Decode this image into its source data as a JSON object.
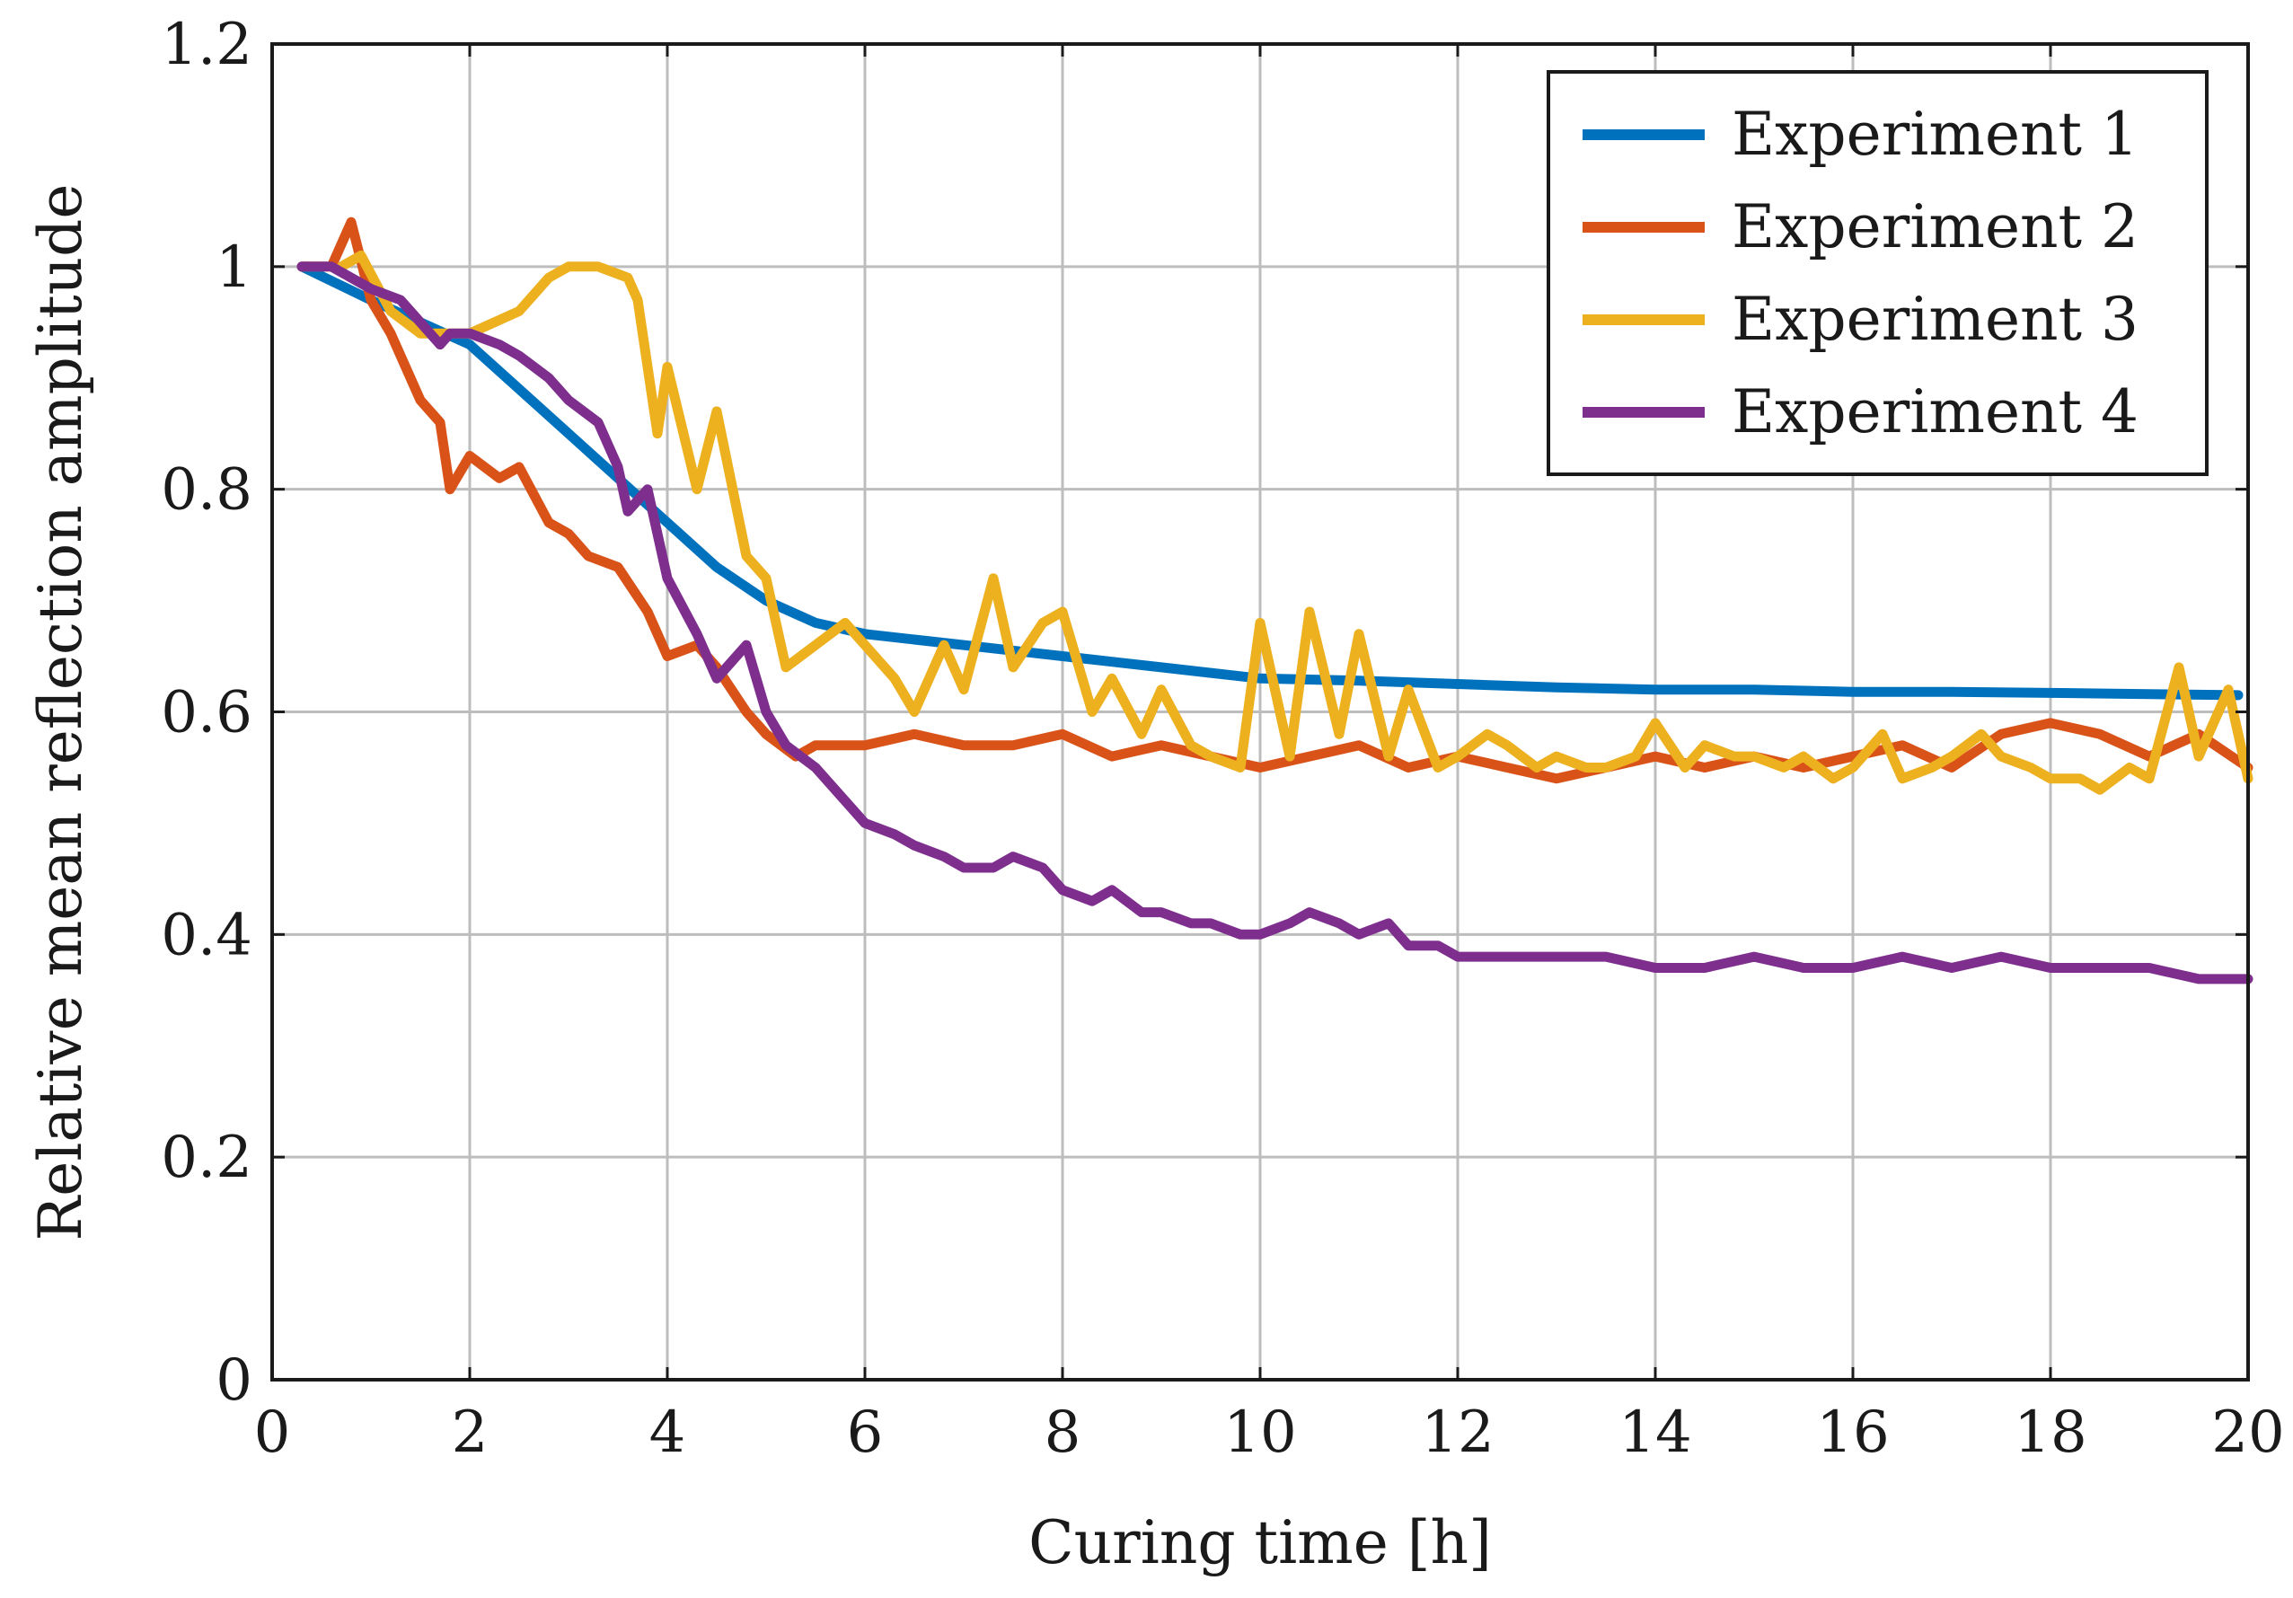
{
  "chart_data": {
    "type": "line",
    "title": "",
    "xlabel": "Curing time [h]",
    "ylabel": "Relative mean reflection amplitude",
    "xlim": [
      0,
      20
    ],
    "ylim": [
      0,
      1.2
    ],
    "grid": true,
    "legend_position": "top-right",
    "xticks": [
      0,
      2,
      4,
      6,
      8,
      10,
      12,
      14,
      16,
      18,
      20
    ],
    "xtick_labels": [
      "0",
      "2",
      "4",
      "6",
      "8",
      "10",
      "12",
      "14",
      "16",
      "18",
      "20"
    ],
    "yticks": [
      0,
      0.2,
      0.4,
      0.6,
      0.8,
      1.0,
      1.2
    ],
    "ytick_labels": [
      "0",
      "0.2",
      "0.4",
      "0.6",
      "0.8",
      "1",
      "1.2"
    ],
    "series": [
      {
        "name": "Experiment 1",
        "color": "#0072BD",
        "x": [
          0.3,
          1.0,
          1.5,
          2.0,
          2.5,
          3.0,
          3.5,
          4.0,
          4.5,
          5.0,
          5.5,
          6.0,
          6.5,
          7.0,
          7.5,
          8.0,
          8.5,
          9.0,
          9.5,
          10.0,
          11.0,
          12.0,
          13.0,
          14.0,
          15.0,
          16.0,
          17.0,
          18.0,
          19.0,
          19.9
        ],
        "y": [
          1.0,
          0.97,
          0.95,
          0.93,
          0.89,
          0.85,
          0.81,
          0.77,
          0.73,
          0.7,
          0.68,
          0.67,
          0.665,
          0.66,
          0.655,
          0.65,
          0.645,
          0.64,
          0.635,
          0.63,
          0.628,
          0.625,
          0.622,
          0.62,
          0.62,
          0.618,
          0.618,
          0.617,
          0.616,
          0.615
        ]
      },
      {
        "name": "Experiment 2",
        "color": "#D95319",
        "x": [
          0.3,
          0.6,
          0.8,
          1.0,
          1.2,
          1.5,
          1.7,
          1.8,
          2.0,
          2.3,
          2.5,
          2.8,
          3.0,
          3.2,
          3.5,
          3.8,
          4.0,
          4.3,
          4.5,
          4.8,
          5.0,
          5.3,
          5.5,
          6.0,
          6.5,
          7.0,
          7.5,
          8.0,
          8.5,
          9.0,
          9.5,
          10.0,
          10.5,
          11.0,
          11.5,
          12.0,
          12.5,
          13.0,
          13.5,
          14.0,
          14.5,
          15.0,
          15.5,
          16.0,
          16.5,
          17.0,
          17.5,
          18.0,
          18.5,
          19.0,
          19.5,
          20.0
        ],
        "y": [
          1.0,
          1.0,
          1.04,
          0.97,
          0.94,
          0.88,
          0.86,
          0.8,
          0.83,
          0.81,
          0.82,
          0.77,
          0.76,
          0.74,
          0.73,
          0.69,
          0.65,
          0.66,
          0.64,
          0.6,
          0.58,
          0.56,
          0.57,
          0.57,
          0.58,
          0.57,
          0.57,
          0.58,
          0.56,
          0.57,
          0.56,
          0.55,
          0.56,
          0.57,
          0.55,
          0.56,
          0.55,
          0.54,
          0.55,
          0.56,
          0.55,
          0.56,
          0.55,
          0.56,
          0.57,
          0.55,
          0.58,
          0.59,
          0.58,
          0.56,
          0.58,
          0.55
        ]
      },
      {
        "name": "Experiment 3",
        "color": "#EDB120",
        "x": [
          0.7,
          0.9,
          1.2,
          1.5,
          2.0,
          2.5,
          2.8,
          3.0,
          3.3,
          3.6,
          3.7,
          3.9,
          4.0,
          4.3,
          4.5,
          4.8,
          5.0,
          5.2,
          5.5,
          5.8,
          6.0,
          6.3,
          6.5,
          6.8,
          7.0,
          7.3,
          7.5,
          7.8,
          8.0,
          8.3,
          8.5,
          8.8,
          9.0,
          9.3,
          9.5,
          9.8,
          10.0,
          10.3,
          10.5,
          10.8,
          11.0,
          11.3,
          11.5,
          11.8,
          12.0,
          12.3,
          12.5,
          12.8,
          13.0,
          13.3,
          13.5,
          13.8,
          14.0,
          14.3,
          14.5,
          14.8,
          15.0,
          15.3,
          15.5,
          15.8,
          16.0,
          16.3,
          16.5,
          16.8,
          17.0,
          17.3,
          17.5,
          17.8,
          18.0,
          18.3,
          18.5,
          18.8,
          19.0,
          19.3,
          19.5,
          19.8,
          20.0
        ],
        "y": [
          1.0,
          1.01,
          0.96,
          0.94,
          0.94,
          0.96,
          0.99,
          1.0,
          1.0,
          0.99,
          0.97,
          0.85,
          0.91,
          0.8,
          0.87,
          0.74,
          0.72,
          0.64,
          0.66,
          0.68,
          0.66,
          0.63,
          0.6,
          0.66,
          0.62,
          0.72,
          0.64,
          0.68,
          0.69,
          0.6,
          0.63,
          0.58,
          0.62,
          0.57,
          0.56,
          0.55,
          0.68,
          0.56,
          0.69,
          0.58,
          0.67,
          0.56,
          0.62,
          0.55,
          0.56,
          0.58,
          0.57,
          0.55,
          0.56,
          0.55,
          0.55,
          0.56,
          0.59,
          0.55,
          0.57,
          0.56,
          0.56,
          0.55,
          0.56,
          0.54,
          0.55,
          0.58,
          0.54,
          0.55,
          0.56,
          0.58,
          0.56,
          0.55,
          0.54,
          0.54,
          0.53,
          0.55,
          0.54,
          0.64,
          0.56,
          0.62,
          0.54
        ]
      },
      {
        "name": "Experiment 4",
        "color": "#7E2F8E",
        "x": [
          0.3,
          0.6,
          0.8,
          1.0,
          1.3,
          1.5,
          1.7,
          1.8,
          2.0,
          2.3,
          2.5,
          2.8,
          3.0,
          3.3,
          3.5,
          3.6,
          3.8,
          4.0,
          4.3,
          4.5,
          4.8,
          5.0,
          5.2,
          5.5,
          5.8,
          6.0,
          6.3,
          6.5,
          6.8,
          7.0,
          7.3,
          7.5,
          7.8,
          8.0,
          8.3,
          8.5,
          8.8,
          9.0,
          9.3,
          9.5,
          9.8,
          10.0,
          10.3,
          10.5,
          10.8,
          11.0,
          11.3,
          11.5,
          11.8,
          12.0,
          12.5,
          13.0,
          13.5,
          14.0,
          14.5,
          15.0,
          15.5,
          16.0,
          16.5,
          17.0,
          17.5,
          18.0,
          18.5,
          19.0,
          19.5,
          20.0
        ],
        "y": [
          1.0,
          1.0,
          0.99,
          0.98,
          0.97,
          0.95,
          0.93,
          0.94,
          0.94,
          0.93,
          0.92,
          0.9,
          0.88,
          0.86,
          0.82,
          0.78,
          0.8,
          0.72,
          0.67,
          0.63,
          0.66,
          0.6,
          0.57,
          0.55,
          0.52,
          0.5,
          0.49,
          0.48,
          0.47,
          0.46,
          0.46,
          0.47,
          0.46,
          0.44,
          0.43,
          0.44,
          0.42,
          0.42,
          0.41,
          0.41,
          0.4,
          0.4,
          0.41,
          0.42,
          0.41,
          0.4,
          0.41,
          0.39,
          0.39,
          0.38,
          0.38,
          0.38,
          0.38,
          0.37,
          0.37,
          0.38,
          0.37,
          0.37,
          0.38,
          0.37,
          0.38,
          0.37,
          0.37,
          0.37,
          0.36,
          0.36
        ]
      }
    ]
  }
}
